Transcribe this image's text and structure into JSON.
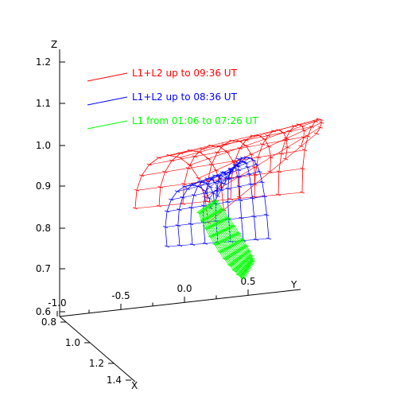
{
  "chart_data": {
    "type": "line",
    "projection": "3d",
    "title": "",
    "axes": {
      "x": {
        "label": "X",
        "ticks": [
          "0.8",
          "1.0",
          "1.2",
          "1.4"
        ]
      },
      "y": {
        "label": "Y",
        "ticks": [
          "-1.0",
          "-0.5",
          "0.0",
          "0.5"
        ]
      },
      "z": {
        "label": "Z",
        "ticks": [
          "0.6",
          "0.7",
          "0.8",
          "0.9",
          "1.0",
          "1.1",
          "1.2"
        ]
      }
    },
    "legend": {
      "placement": "top-left",
      "entries": [
        {
          "label": "L1+L2 up to 09:36 UT",
          "color": "#ff0000"
        },
        {
          "label": "L1+L2 up to 08:36 UT",
          "color": "#0000ff"
        },
        {
          "label": "L1 from 01:06 to 07:26 UT",
          "color": "#00ff00"
        }
      ]
    },
    "series": [
      {
        "color": "#ff0000",
        "loop_count": 8
      },
      {
        "color": "#0000ff",
        "loop_count": 9
      },
      {
        "color": "#00ff00",
        "loop_count": 18
      }
    ]
  }
}
